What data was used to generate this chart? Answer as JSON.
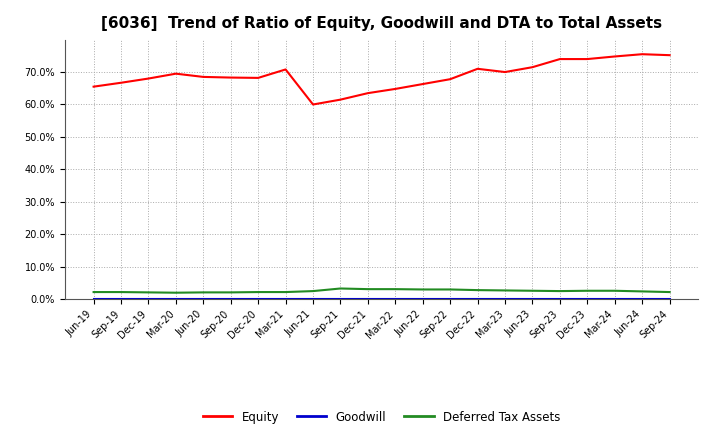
{
  "title": "[6036]  Trend of Ratio of Equity, Goodwill and DTA to Total Assets",
  "x_labels": [
    "Jun-19",
    "Sep-19",
    "Dec-19",
    "Mar-20",
    "Jun-20",
    "Sep-20",
    "Dec-20",
    "Mar-21",
    "Jun-21",
    "Sep-21",
    "Dec-21",
    "Mar-22",
    "Jun-22",
    "Sep-22",
    "Dec-22",
    "Mar-23",
    "Jun-23",
    "Sep-23",
    "Dec-23",
    "Mar-24",
    "Jun-24",
    "Sep-24"
  ],
  "equity": [
    0.655,
    0.667,
    0.68,
    0.695,
    0.685,
    0.683,
    0.682,
    0.708,
    0.6,
    0.615,
    0.635,
    0.648,
    0.663,
    0.678,
    0.71,
    0.7,
    0.715,
    0.74,
    0.74,
    0.748,
    0.755,
    0.752
  ],
  "goodwill": [
    0.0,
    0.0,
    0.0,
    0.0,
    0.0,
    0.0,
    0.0,
    0.0,
    0.0,
    0.0,
    0.0,
    0.0,
    0.0,
    0.0,
    0.0,
    0.0,
    0.0,
    0.0,
    0.0,
    0.0,
    0.0,
    0.0
  ],
  "dta": [
    0.022,
    0.022,
    0.021,
    0.02,
    0.021,
    0.021,
    0.022,
    0.022,
    0.025,
    0.033,
    0.031,
    0.031,
    0.03,
    0.03,
    0.028,
    0.027,
    0.026,
    0.025,
    0.026,
    0.026,
    0.024,
    0.022
  ],
  "equity_color": "#ff0000",
  "goodwill_color": "#0000cd",
  "dta_color": "#228b22",
  "ylim": [
    0.0,
    0.8
  ],
  "yticks": [
    0.0,
    0.1,
    0.2,
    0.3,
    0.4,
    0.5,
    0.6,
    0.7
  ],
  "background_color": "#ffffff",
  "plot_bg_color": "#ffffff",
  "grid_color": "#aaaaaa",
  "title_fontsize": 11,
  "tick_fontsize": 7,
  "legend_labels": [
    "Equity",
    "Goodwill",
    "Deferred Tax Assets"
  ]
}
